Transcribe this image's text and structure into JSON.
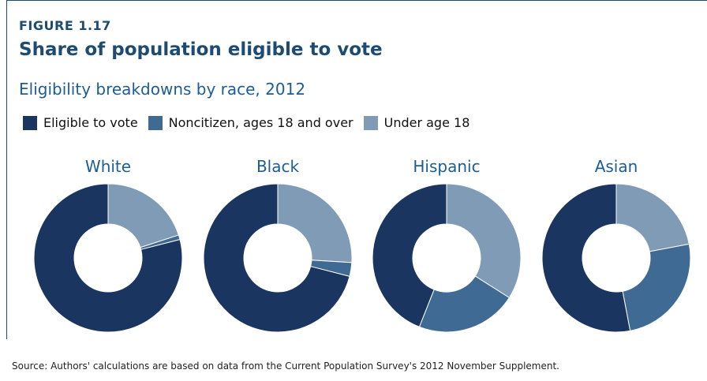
{
  "figure_label": "FIGURE 1.17",
  "title": "Share of population eligible to vote",
  "subtitle": "Eligibility breakdowns by race, 2012",
  "legend": [
    {
      "label": "Eligible to vote",
      "color": "#1b3561"
    },
    {
      "label": "Noncitizen, ages 18 and over",
      "color": "#3f6a93"
    },
    {
      "label": "Under age 18",
      "color": "#7f9bb6"
    }
  ],
  "chart_data": {
    "type": "pie",
    "style": "donut",
    "series_order": [
      "Under age 18",
      "Noncitizen, ages 18 and over",
      "Eligible to vote"
    ],
    "charts": [
      {
        "name": "White",
        "values": {
          "Under age 18": 20,
          "Noncitizen, ages 18 and over": 1,
          "Eligible to vote": 79
        }
      },
      {
        "name": "Black",
        "values": {
          "Under age 18": 26,
          "Noncitizen, ages 18 and over": 3,
          "Eligible to vote": 71
        }
      },
      {
        "name": "Hispanic",
        "values": {
          "Under age 18": 34,
          "Noncitizen, ages 18 and over": 22,
          "Eligible to vote": 44
        }
      },
      {
        "name": "Asian",
        "values": {
          "Under age 18": 22,
          "Noncitizen, ages 18 and over": 25,
          "Eligible to vote": 53
        }
      }
    ]
  },
  "source": "Source: Authors' calculations are based on data from the Current Population Survey's 2012 November Supplement."
}
